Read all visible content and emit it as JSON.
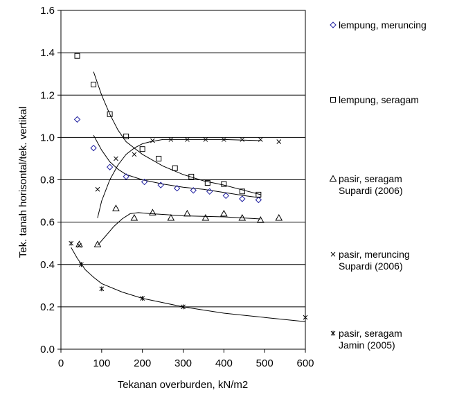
{
  "chart_data": {
    "type": "scatter",
    "title": "",
    "xlabel": "Tekanan overburden, kN/m2",
    "ylabel": "Tek. tanah horisontal/tek. vertikal",
    "xlim": [
      0,
      600
    ],
    "ylim": [
      0,
      1.6
    ],
    "xticks": [
      "0",
      "100",
      "200",
      "300",
      "400",
      "500",
      "600"
    ],
    "yticks": [
      "0.0",
      "0.2",
      "0.4",
      "0.6",
      "0.8",
      "1.0",
      "1.2",
      "1.4",
      "1.6"
    ],
    "grid": "horizontal",
    "legend_position": "right",
    "series": [
      {
        "name": "lempung, meruncing",
        "marker": "diamond",
        "color": "#1f1fa0",
        "points": [
          [
            40,
            1.085
          ],
          [
            80,
            0.95
          ],
          [
            120,
            0.86
          ],
          [
            160,
            0.815
          ],
          [
            205,
            0.79
          ],
          [
            245,
            0.775
          ],
          [
            285,
            0.76
          ],
          [
            325,
            0.75
          ],
          [
            365,
            0.745
          ],
          [
            405,
            0.725
          ],
          [
            445,
            0.71
          ],
          [
            485,
            0.705
          ]
        ],
        "trend": [
          [
            80,
            1.01
          ],
          [
            100,
            0.94
          ],
          [
            120,
            0.885
          ],
          [
            140,
            0.85
          ],
          [
            160,
            0.825
          ],
          [
            200,
            0.8
          ],
          [
            250,
            0.78
          ],
          [
            300,
            0.765
          ],
          [
            350,
            0.755
          ],
          [
            400,
            0.74
          ],
          [
            450,
            0.725
          ],
          [
            490,
            0.715
          ]
        ]
      },
      {
        "name": "lempung, seragam",
        "marker": "square",
        "color": "#000000",
        "points": [
          [
            40,
            1.385
          ],
          [
            80,
            1.25
          ],
          [
            120,
            1.11
          ],
          [
            160,
            1.005
          ],
          [
            200,
            0.945
          ],
          [
            240,
            0.9
          ],
          [
            280,
            0.855
          ],
          [
            320,
            0.815
          ],
          [
            360,
            0.785
          ],
          [
            400,
            0.78
          ],
          [
            445,
            0.745
          ],
          [
            485,
            0.73
          ]
        ],
        "trend": [
          [
            80,
            1.31
          ],
          [
            100,
            1.2
          ],
          [
            120,
            1.11
          ],
          [
            140,
            1.035
          ],
          [
            160,
            0.98
          ],
          [
            200,
            0.92
          ],
          [
            250,
            0.865
          ],
          [
            300,
            0.825
          ],
          [
            350,
            0.795
          ],
          [
            400,
            0.775
          ],
          [
            450,
            0.75
          ],
          [
            490,
            0.73
          ]
        ]
      },
      {
        "name": "pasir, seragam Supardi (2006)",
        "marker": "triangle",
        "color": "#000000",
        "points": [
          [
            90,
            0.495
          ],
          [
            135,
            0.665
          ],
          [
            180,
            0.62
          ],
          [
            225,
            0.645
          ],
          [
            270,
            0.62
          ],
          [
            310,
            0.64
          ],
          [
            355,
            0.62
          ],
          [
            400,
            0.64
          ],
          [
            445,
            0.62
          ],
          [
            490,
            0.61
          ],
          [
            535,
            0.62
          ]
        ],
        "trend": [
          [
            90,
            0.49
          ],
          [
            110,
            0.535
          ],
          [
            130,
            0.58
          ],
          [
            150,
            0.615
          ],
          [
            170,
            0.64
          ],
          [
            190,
            0.645
          ],
          [
            220,
            0.64
          ],
          [
            260,
            0.635
          ],
          [
            300,
            0.63
          ],
          [
            400,
            0.625
          ],
          [
            490,
            0.615
          ]
        ]
      },
      {
        "name": "pasir, meruncing Supardi (2006)",
        "marker": "x",
        "color": "#000000",
        "points": [
          [
            90,
            0.755
          ],
          [
            135,
            0.9
          ],
          [
            180,
            0.92
          ],
          [
            225,
            0.985
          ],
          [
            270,
            0.99
          ],
          [
            310,
            0.99
          ],
          [
            355,
            0.99
          ],
          [
            400,
            0.99
          ],
          [
            445,
            0.99
          ],
          [
            490,
            0.99
          ],
          [
            535,
            0.98
          ]
        ],
        "trend": [
          [
            90,
            0.62
          ],
          [
            100,
            0.7
          ],
          [
            120,
            0.8
          ],
          [
            140,
            0.87
          ],
          [
            160,
            0.92
          ],
          [
            180,
            0.95
          ],
          [
            200,
            0.97
          ],
          [
            220,
            0.98
          ],
          [
            250,
            0.99
          ],
          [
            300,
            0.99
          ],
          [
            400,
            0.99
          ],
          [
            490,
            0.985
          ]
        ]
      },
      {
        "name": "pasir, seragam Jamin (2005)",
        "marker": "star",
        "color": "#000000",
        "points": [
          [
            25,
            0.5
          ],
          [
            50,
            0.4
          ],
          [
            100,
            0.285
          ],
          [
            200,
            0.24
          ],
          [
            300,
            0.2
          ],
          [
            600,
            0.15
          ]
        ],
        "trend": [
          [
            25,
            0.48
          ],
          [
            40,
            0.43
          ],
          [
            60,
            0.375
          ],
          [
            80,
            0.34
          ],
          [
            100,
            0.31
          ],
          [
            150,
            0.27
          ],
          [
            200,
            0.24
          ],
          [
            250,
            0.22
          ],
          [
            300,
            0.2
          ],
          [
            350,
            0.185
          ],
          [
            400,
            0.17
          ],
          [
            450,
            0.16
          ],
          [
            500,
            0.15
          ],
          [
            550,
            0.14
          ],
          [
            600,
            0.13
          ]
        ]
      }
    ],
    "legend": [
      {
        "marker": "diamond",
        "lines": [
          "lempung, meruncing"
        ]
      },
      {
        "marker": "square",
        "lines": [
          "lempung, seragam"
        ]
      },
      {
        "marker": "triangle",
        "lines": [
          "pasir, seragam",
          "Supardi (2006)"
        ]
      },
      {
        "marker": "x",
        "lines": [
          "pasir, meruncing",
          "Supardi (2006)"
        ]
      },
      {
        "marker": "star",
        "lines": [
          "pasir, seragam",
          "Jamin (2005)"
        ]
      }
    ],
    "extra_markers": {
      "triangle": [
        [
          45,
          0.495
        ]
      ],
      "x": [
        [
          45,
          0.49
        ]
      ]
    }
  }
}
